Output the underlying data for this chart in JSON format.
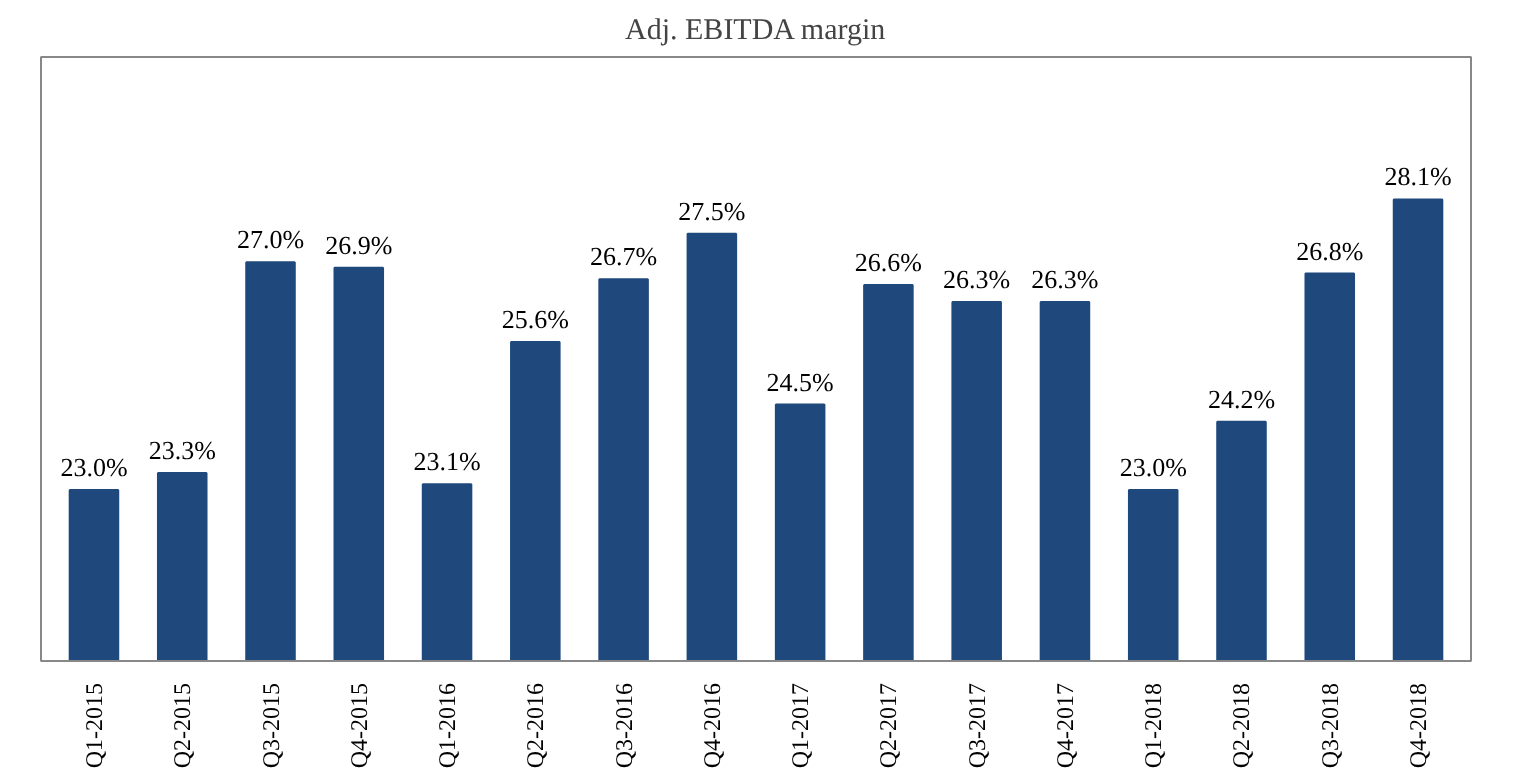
{
  "chart_data": {
    "type": "bar",
    "title": "Adj. EBITDA margin",
    "categories": [
      "Q1-2015",
      "Q2-2015",
      "Q3-2015",
      "Q4-2015",
      "Q1-2016",
      "Q2-2016",
      "Q3-2016",
      "Q4-2016",
      "Q1-2017",
      "Q2-2017",
      "Q3-2017",
      "Q4-2017",
      "Q1-2018",
      "Q2-2018",
      "Q3-2018",
      "Q4-2018"
    ],
    "values": [
      23.0,
      23.3,
      27.0,
      26.9,
      23.1,
      25.6,
      26.7,
      27.5,
      24.5,
      26.6,
      26.3,
      26.3,
      23.0,
      24.2,
      26.8,
      28.1
    ],
    "value_labels": [
      "23.0%",
      "23.3%",
      "27.0%",
      "26.9%",
      "23.1%",
      "25.6%",
      "26.7%",
      "27.5%",
      "24.5%",
      "26.6%",
      "26.3%",
      "26.3%",
      "23.0%",
      "24.2%",
      "26.8%",
      "28.1%"
    ],
    "color": "#1f497d",
    "ylim": [
      20,
      30.6
    ],
    "tick_labels": "x",
    "grid": false
  }
}
